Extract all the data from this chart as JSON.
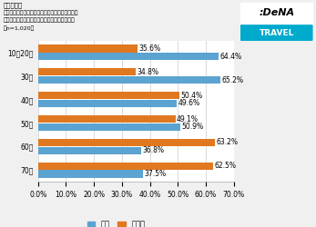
{
  "title_lines": [
    "【年代別】",
    "あなたは物語の舞台やゆかりのある場所を実際に訪れる「聖地巡礼」をしたことはありますか？",
    "（n=1,020）"
  ],
  "categories": [
    "10・20代",
    "30代",
    "40代",
    "50代",
    "60代",
    "70代"
  ],
  "yes_values": [
    64.4,
    65.2,
    49.6,
    50.9,
    36.8,
    37.5
  ],
  "no_values": [
    35.6,
    34.8,
    50.4,
    49.1,
    63.2,
    62.5
  ],
  "yes_color": "#5BA3D0",
  "no_color": "#E07820",
  "bar_height": 0.32,
  "bar_gap": 0.02,
  "xlim": [
    0,
    70
  ],
  "xticks": [
    0,
    10,
    20,
    30,
    40,
    50,
    60,
    70
  ],
  "legend_labels": [
    "はい",
    "いいえ"
  ],
  "background_color": "#f0f0f0",
  "plot_background": "#ffffff",
  "title_fontsize": 5.0,
  "label_fontsize": 5.5,
  "tick_fontsize": 5.5,
  "legend_fontsize": 6,
  "grid_color": "#cccccc"
}
